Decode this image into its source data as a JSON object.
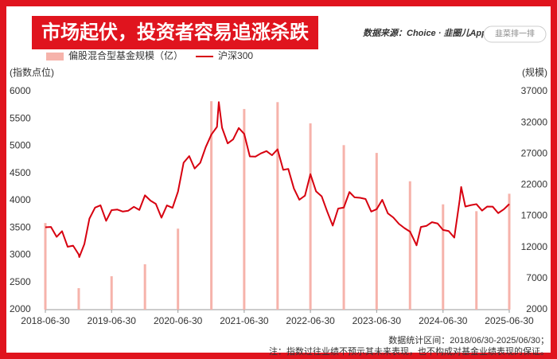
{
  "chart_data": {
    "type": "bar-line",
    "title": "市场起伏，投资者容易追涨杀跌",
    "source": "数据来源：Choice · 韭圈儿App",
    "search_placeholder": "韭菜排一排",
    "y_label": "(指数点位)",
    "y2_label": "(规模)",
    "footer_range": "数据统计区间：2018/06/30-2025/06/30；",
    "footer_note": "注：指数过往业绩不预示其未来表现，也不构成对基金业绩表现的保证。",
    "xlim": [
      "2018-06-30",
      "2025-06-30"
    ],
    "xticks": [
      "2018-06-30",
      "2019-06-30",
      "2020-06-30",
      "2021-06-30",
      "2022-06-30",
      "2023-06-30",
      "2024-06-30",
      "2025-06-30"
    ],
    "ylim": [
      2000,
      6000
    ],
    "yticks": [
      2000,
      2500,
      3000,
      3500,
      4000,
      4500,
      5000,
      5500,
      6000
    ],
    "y2lim": [
      2000,
      37000
    ],
    "y2ticks": [
      2000,
      7000,
      12000,
      17000,
      22000,
      27000,
      32000,
      37000
    ],
    "series": [
      {
        "name": "偏股混合型基金规模（亿）",
        "kind": "bar",
        "axis": "y2",
        "color": "#f6b3ab",
        "x": [
          "2018-06-30",
          "2018-12-31",
          "2019-06-30",
          "2019-12-31",
          "2020-06-30",
          "2020-12-31",
          "2021-06-30",
          "2021-12-31",
          "2022-06-30",
          "2022-12-31",
          "2023-06-30",
          "2023-12-31",
          "2024-06-30",
          "2024-12-31",
          "2025-06-30"
        ],
        "values": [
          15900,
          5450,
          7360,
          9280,
          15000,
          35450,
          34200,
          35300,
          31900,
          28400,
          27150,
          22600,
          18900,
          17800,
          20600
        ]
      },
      {
        "name": "沪深300",
        "kind": "line",
        "axis": "y",
        "color": "#d7000f",
        "x": [
          "2018-06-30",
          "2018-07-31",
          "2018-08-31",
          "2018-09-30",
          "2018-10-31",
          "2018-11-30",
          "2018-12-31",
          "2019-01-03",
          "2019-01-31",
          "2019-02-28",
          "2019-03-31",
          "2019-04-30",
          "2019-05-31",
          "2019-06-30",
          "2019-07-31",
          "2019-08-31",
          "2019-09-30",
          "2019-10-31",
          "2019-11-30",
          "2019-12-31",
          "2020-01-31",
          "2020-02-29",
          "2020-03-31",
          "2020-04-30",
          "2020-05-31",
          "2020-06-30",
          "2020-07-31",
          "2020-08-31",
          "2020-09-30",
          "2020-10-31",
          "2020-11-30",
          "2020-12-31",
          "2021-01-31",
          "2021-02-10",
          "2021-02-28",
          "2021-03-31",
          "2021-04-30",
          "2021-05-31",
          "2021-06-30",
          "2021-07-31",
          "2021-08-31",
          "2021-09-30",
          "2021-10-31",
          "2021-11-30",
          "2021-12-31",
          "2022-01-31",
          "2022-02-28",
          "2022-03-31",
          "2022-04-30",
          "2022-05-31",
          "2022-06-30",
          "2022-07-31",
          "2022-08-31",
          "2022-09-30",
          "2022-10-31",
          "2022-11-30",
          "2022-12-31",
          "2023-01-31",
          "2023-02-28",
          "2023-03-31",
          "2023-04-30",
          "2023-05-31",
          "2023-06-30",
          "2023-07-31",
          "2023-08-31",
          "2023-09-30",
          "2023-10-31",
          "2023-11-30",
          "2023-12-31",
          "2024-01-31",
          "2024-02-05",
          "2024-02-29",
          "2024-03-31",
          "2024-04-30",
          "2024-05-31",
          "2024-06-30",
          "2024-07-31",
          "2024-08-31",
          "2024-09-30",
          "2024-10-08",
          "2024-10-31",
          "2024-11-30",
          "2024-12-31",
          "2025-01-31",
          "2025-02-28",
          "2025-03-31",
          "2025-04-30",
          "2025-05-31",
          "2025-06-30"
        ],
        "values": [
          3510,
          3517,
          3335,
          3439,
          3153,
          3173,
          3011,
          2964,
          3202,
          3670,
          3872,
          3913,
          3629,
          3825,
          3836,
          3799,
          3814,
          3886,
          3828,
          4097,
          3998,
          3940,
          3686,
          3912,
          3868,
          4164,
          4695,
          4816,
          4588,
          4695,
          4981,
          5211,
          5352,
          5807,
          5336,
          5049,
          5123,
          5332,
          5224,
          4811,
          4806,
          4866,
          4908,
          4832,
          4940,
          4564,
          4581,
          4222,
          4016,
          4091,
          4485,
          4170,
          4079,
          3804,
          3541,
          3854,
          3872,
          4157,
          4061,
          4051,
          4029,
          3799,
          3842,
          4014,
          3765,
          3690,
          3573,
          3496,
          3431,
          3216,
          3180,
          3516,
          3537,
          3604,
          3580,
          3462,
          3442,
          3321,
          4018,
          4250,
          3891,
          3916,
          3935,
          3817,
          3890,
          3888,
          3770,
          3840,
          3936
        ]
      }
    ]
  }
}
